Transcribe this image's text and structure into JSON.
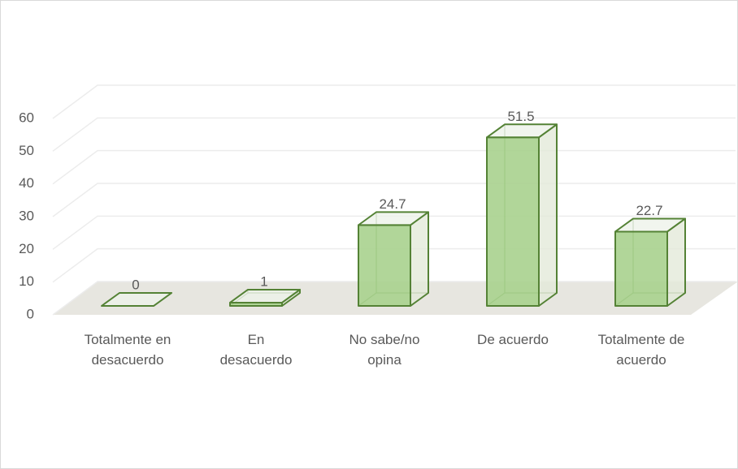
{
  "chart_data": {
    "type": "bar3d",
    "categories": [
      "Totalmente en desacuerdo",
      "En desacuerdo",
      "No sabe/no opina",
      "De acuerdo",
      "Totalmente de acuerdo"
    ],
    "values": [
      0,
      1,
      24.7,
      51.5,
      22.7
    ],
    "color": "#a9d18e",
    "edge_color": "#548235",
    "ylim": [
      0,
      60
    ],
    "yticks": [
      0,
      10,
      20,
      30,
      40,
      50,
      60
    ],
    "grid": true
  }
}
